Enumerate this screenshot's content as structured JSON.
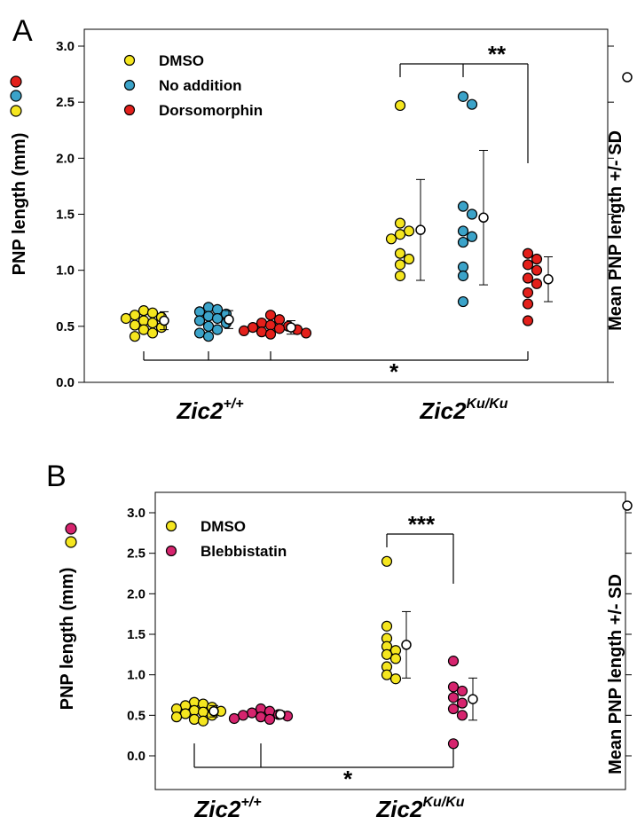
{
  "chart_data": [
    {
      "panel": "A",
      "type": "scatter",
      "ylabel": "PNP length (mm)",
      "ylabel_right": "Mean PNP length +/- SD",
      "ylim": [
        0,
        3.1
      ],
      "yticks": [
        "0.0",
        "0.5",
        "1.0",
        "1.5",
        "2.0",
        "2.5",
        "3.0"
      ],
      "ytick_values": [
        0,
        0.5,
        1.0,
        1.5,
        2.0,
        2.5,
        3.0
      ],
      "groups": [
        {
          "label": "Zic2",
          "sup": "+/+"
        },
        {
          "label": "Zic2",
          "sup": "Ku/Ku"
        }
      ],
      "legend": {
        "placement": "top-left",
        "entries": [
          {
            "label": "DMSO",
            "color": "#f5e61f"
          },
          {
            "label": "No addition",
            "color": "#3ba3c9"
          },
          {
            "label": "Dorsomorphin",
            "color": "#e3201b"
          }
        ]
      },
      "series": [
        {
          "name": "DMSO",
          "color": "#f5e61f",
          "group": 0,
          "values": [
            0.64,
            0.62,
            0.6,
            0.58,
            0.57,
            0.55,
            0.53,
            0.51,
            0.49,
            0.47,
            0.44,
            0.41
          ],
          "mean": 0.55,
          "sd": 0.08
        },
        {
          "name": "No addition",
          "color": "#3ba3c9",
          "group": 0,
          "values": [
            0.67,
            0.65,
            0.63,
            0.61,
            0.59,
            0.57,
            0.55,
            0.53,
            0.5,
            0.47,
            0.44,
            0.41
          ],
          "mean": 0.56,
          "sd": 0.08
        },
        {
          "name": "Dorsomorphin",
          "color": "#e3201b",
          "group": 0,
          "values": [
            0.6,
            0.56,
            0.53,
            0.51,
            0.5,
            0.49,
            0.48,
            0.47,
            0.46,
            0.45,
            0.44,
            0.43
          ],
          "mean": 0.49,
          "sd": 0.06
        },
        {
          "name": "DMSO",
          "color": "#f5e61f",
          "group": 1,
          "values": [
            2.47,
            1.42,
            1.35,
            1.32,
            1.28,
            1.15,
            1.1,
            1.05,
            0.95
          ],
          "mean": 1.36,
          "sd": 0.45
        },
        {
          "name": "No addition",
          "color": "#3ba3c9",
          "group": 1,
          "values": [
            2.55,
            2.48,
            1.57,
            1.5,
            1.35,
            1.3,
            1.25,
            1.03,
            0.95,
            0.72
          ],
          "mean": 1.47,
          "sd": 0.6
        },
        {
          "name": "Dorsomorphin",
          "color": "#e3201b",
          "group": 1,
          "values": [
            1.15,
            1.1,
            1.05,
            1.0,
            0.93,
            0.88,
            0.8,
            0.7,
            0.55
          ],
          "mean": 0.92,
          "sd": 0.2
        }
      ],
      "significance": [
        {
          "label": "**",
          "between": "Zic2 Ku/Ku DMSO + No addition vs Dorsomorphin"
        },
        {
          "label": "*",
          "between": "Zic2 +/+ vs Zic2 Ku/Ku Dorsomorphin"
        }
      ]
    },
    {
      "panel": "B",
      "type": "scatter",
      "ylabel": "PNP length (mm)",
      "ylabel_right": "Mean PNP length +/- SD",
      "ylim": [
        -0.25,
        3.1
      ],
      "yticks": [
        "0.0",
        "0.5",
        "1.0",
        "1.5",
        "2.0",
        "2.5",
        "3.0"
      ],
      "ytick_values": [
        0,
        0.5,
        1.0,
        1.5,
        2.0,
        2.5,
        3.0
      ],
      "groups": [
        {
          "label": "Zic2",
          "sup": "+/+"
        },
        {
          "label": "Zic2",
          "sup": "Ku/Ku"
        }
      ],
      "legend": {
        "placement": "top-left",
        "entries": [
          {
            "label": "DMSO",
            "color": "#f5e61f"
          },
          {
            "label": "Blebbistatin",
            "color": "#d6246e"
          }
        ]
      },
      "series": [
        {
          "name": "DMSO",
          "color": "#f5e61f",
          "group": 0,
          "values": [
            0.66,
            0.64,
            0.62,
            0.6,
            0.58,
            0.56,
            0.55,
            0.54,
            0.52,
            0.5,
            0.48,
            0.45,
            0.43
          ],
          "mean": 0.55,
          "sd": 0.07
        },
        {
          "name": "Blebbistatin",
          "color": "#d6246e",
          "group": 0,
          "values": [
            0.58,
            0.55,
            0.53,
            0.51,
            0.5,
            0.49,
            0.48,
            0.46,
            0.45
          ],
          "mean": 0.51,
          "sd": 0.04
        },
        {
          "name": "DMSO",
          "color": "#f5e61f",
          "group": 1,
          "values": [
            2.4,
            1.6,
            1.45,
            1.35,
            1.3,
            1.25,
            1.2,
            1.1,
            1.0,
            0.95
          ],
          "mean": 1.37,
          "sd": 0.41
        },
        {
          "name": "Blebbistatin",
          "color": "#d6246e",
          "group": 1,
          "values": [
            1.17,
            0.85,
            0.8,
            0.72,
            0.65,
            0.58,
            0.5,
            0.15
          ],
          "mean": 0.7,
          "sd": 0.26
        }
      ],
      "significance": [
        {
          "label": "***",
          "between": "Zic2 Ku/Ku DMSO vs Blebbistatin"
        },
        {
          "label": "*",
          "between": "Zic2 +/+ vs Zic2 Ku/Ku Blebbistatin"
        }
      ]
    }
  ]
}
